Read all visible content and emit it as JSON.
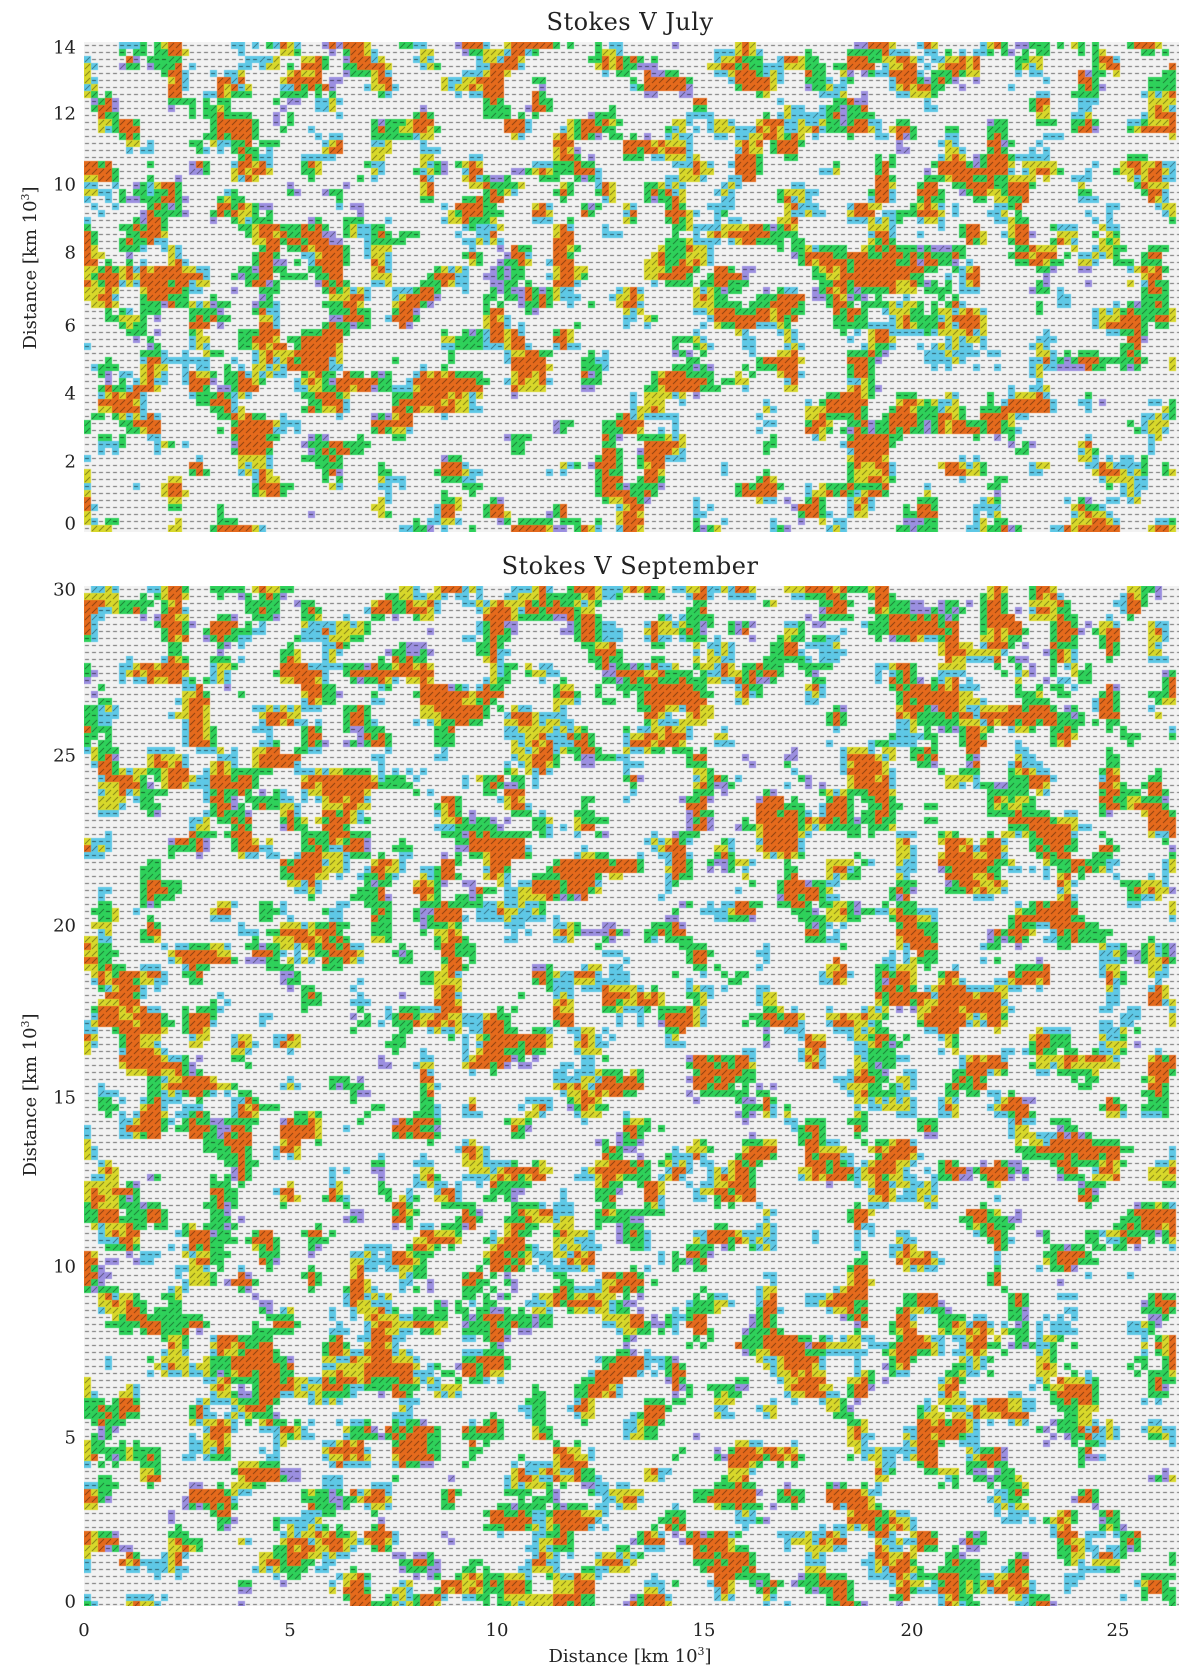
{
  "chart_data": [
    {
      "type": "heatmap",
      "title": "Stokes V July",
      "ylabel": "Distance [km 10",
      "ylabel_sup": "3",
      "ylabel_end": "]",
      "ylim": [
        0,
        14
      ],
      "xlim": [
        0,
        27
      ],
      "yticks": [
        "0",
        "2",
        "4",
        "6",
        "8",
        "10",
        "12",
        "14"
      ],
      "color_scale": [
        "#f2f2f2",
        "#5ec8e6",
        "#9b8fe0",
        "#2ed15a",
        "#d8d82a",
        "#e56a1c"
      ]
    },
    {
      "type": "heatmap",
      "title": "Stokes V September",
      "ylabel": "Distance [km 10",
      "ylabel_sup": "3",
      "ylabel_end": "]",
      "xlabel": "Distance [km 10",
      "xlabel_sup": "3",
      "xlabel_end": "]",
      "ylim": [
        0,
        30
      ],
      "xlim": [
        0,
        27
      ],
      "yticks": [
        "0",
        "5",
        "10",
        "15",
        "20",
        "25",
        "30"
      ],
      "xticks": [
        "0",
        "5",
        "10",
        "15",
        "20",
        "25"
      ],
      "color_scale": [
        "#f2f2f2",
        "#5ec8e6",
        "#9b8fe0",
        "#2ed15a",
        "#d8d82a",
        "#e56a1c"
      ]
    }
  ]
}
